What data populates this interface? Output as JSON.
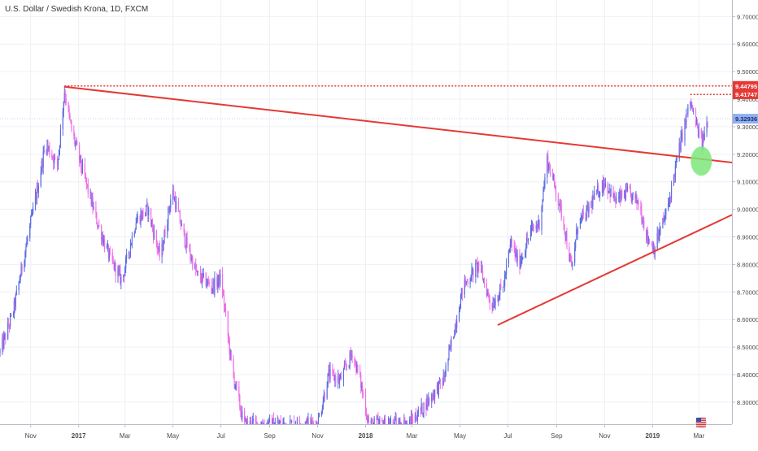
{
  "chart_data": {
    "type": "candlestick",
    "title": "U.S. Dollar / Swedish Krona, 1D, FXCM",
    "timeframe": "1D",
    "ylim": [
      8.22,
      9.76
    ],
    "y_ticks": [
      8.3,
      8.4,
      8.5,
      8.6,
      8.7,
      8.8,
      8.9,
      9.0,
      9.1,
      9.2,
      9.3,
      9.4,
      9.5,
      9.6,
      9.7
    ],
    "y_tick_labels": [
      "8.30000",
      "8.40000",
      "8.50000",
      "8.60000",
      "8.70000",
      "8.80000",
      "8.90000",
      "9.00000",
      "9.10000",
      "9.20000",
      "9.30000",
      "9.40000",
      "9.50000",
      "9.60000",
      "9.70000"
    ],
    "x_range": [
      "2016-09-23",
      "2019-04-12"
    ],
    "x_ticks": [
      {
        "date": "2016-11-01",
        "label": "Nov"
      },
      {
        "date": "2017-01-01",
        "label": "2017"
      },
      {
        "date": "2017-03-01",
        "label": "Mar"
      },
      {
        "date": "2017-05-01",
        "label": "May"
      },
      {
        "date": "2017-07-01",
        "label": "Jul"
      },
      {
        "date": "2017-09-01",
        "label": "Sep"
      },
      {
        "date": "2017-11-01",
        "label": "Nov"
      },
      {
        "date": "2018-01-01",
        "label": "2018"
      },
      {
        "date": "2018-03-01",
        "label": "Mar"
      },
      {
        "date": "2018-05-01",
        "label": "May"
      },
      {
        "date": "2018-07-01",
        "label": "Jul"
      },
      {
        "date": "2018-09-01",
        "label": "Sep"
      },
      {
        "date": "2018-11-01",
        "label": "Nov"
      },
      {
        "date": "2019-01-01",
        "label": "2019"
      },
      {
        "date": "2019-03-01",
        "label": "Mar"
      }
    ],
    "up_color": "#5b6ee1",
    "down_color": "#f06ee8",
    "price_anchors": [
      [
        "2016-09-23",
        8.48
      ],
      [
        "2016-10-10",
        8.63
      ],
      [
        "2016-10-25",
        8.85
      ],
      [
        "2016-11-08",
        9.05
      ],
      [
        "2016-11-20",
        9.24
      ],
      [
        "2016-12-05",
        9.16
      ],
      [
        "2016-12-14",
        9.43
      ],
      [
        "2016-12-22",
        9.3
      ],
      [
        "2017-01-05",
        9.15
      ],
      [
        "2017-01-25",
        8.95
      ],
      [
        "2017-02-10",
        8.82
      ],
      [
        "2017-02-25",
        8.74
      ],
      [
        "2017-03-15",
        8.96
      ],
      [
        "2017-03-30",
        9.0
      ],
      [
        "2017-04-15",
        8.82
      ],
      [
        "2017-04-30",
        9.07
      ],
      [
        "2017-05-15",
        8.9
      ],
      [
        "2017-06-01",
        8.76
      ],
      [
        "2017-06-20",
        8.72
      ],
      [
        "2017-07-01",
        8.75
      ],
      [
        "2017-07-15",
        8.42
      ],
      [
        "2017-07-30",
        8.22
      ],
      [
        "2017-11-01",
        8.22
      ],
      [
        "2017-11-15",
        8.4
      ],
      [
        "2017-11-30",
        8.38
      ],
      [
        "2017-12-15",
        8.48
      ],
      [
        "2017-12-25",
        8.38
      ],
      [
        "2018-01-05",
        8.22
      ],
      [
        "2018-02-25",
        8.22
      ],
      [
        "2018-03-15",
        8.28
      ],
      [
        "2018-04-10",
        8.38
      ],
      [
        "2018-04-25",
        8.58
      ],
      [
        "2018-05-05",
        8.72
      ],
      [
        "2018-05-25",
        8.8
      ],
      [
        "2018-06-10",
        8.65
      ],
      [
        "2018-06-25",
        8.72
      ],
      [
        "2018-07-05",
        8.88
      ],
      [
        "2018-07-15",
        8.8
      ],
      [
        "2018-07-30",
        8.92
      ],
      [
        "2018-08-10",
        8.95
      ],
      [
        "2018-08-20",
        9.18
      ],
      [
        "2018-08-30",
        9.08
      ],
      [
        "2018-09-10",
        8.95
      ],
      [
        "2018-09-20",
        8.78
      ],
      [
        "2018-09-28",
        8.95
      ],
      [
        "2018-10-08",
        8.98
      ],
      [
        "2018-10-20",
        9.05
      ],
      [
        "2018-11-01",
        9.1
      ],
      [
        "2018-11-15",
        9.03
      ],
      [
        "2018-11-30",
        9.06
      ],
      [
        "2018-12-15",
        9.02
      ],
      [
        "2018-12-25",
        8.9
      ],
      [
        "2019-01-03",
        8.86
      ],
      [
        "2019-01-20",
        9.0
      ],
      [
        "2019-02-01",
        9.18
      ],
      [
        "2019-02-10",
        9.3
      ],
      [
        "2019-02-18",
        9.39
      ],
      [
        "2019-02-26",
        9.3
      ],
      [
        "2019-03-05",
        9.24
      ],
      [
        "2019-03-12",
        9.32
      ]
    ],
    "trend_lines": [
      {
        "from": [
          "2016-12-14",
          9.445
        ],
        "to": [
          "2019-04-12",
          9.17
        ],
        "color": "#e53935"
      },
      {
        "from": [
          "2018-06-18",
          8.58
        ],
        "to": [
          "2019-04-12",
          8.98
        ],
        "color": "#e53935"
      }
    ],
    "horizontal_levels": [
      {
        "from": "2016-12-14",
        "y": 9.448,
        "color": "#e53935",
        "style": "dotted"
      },
      {
        "from": "2019-02-18",
        "y": 9.417,
        "color": "#e53935",
        "style": "dotted"
      }
    ],
    "highlight_marker": {
      "date": "2019-03-04",
      "y": 9.175,
      "color": "#7ee87a"
    },
    "price_labels": [
      {
        "text": "9.44795",
        "y": 9.448,
        "bg": "#e53935",
        "fg": "#ffffff"
      },
      {
        "text": "9.41747",
        "y": 9.418,
        "bg": "#e53935",
        "fg": "#ffffff"
      },
      {
        "text": "9.32936",
        "y": 9.329,
        "bg": "#8fb0f0",
        "fg": "#1a2f6e"
      }
    ],
    "current_price_line": {
      "y": 9.329,
      "color": "#c7d3f2"
    },
    "grid": true,
    "legend": "none"
  }
}
